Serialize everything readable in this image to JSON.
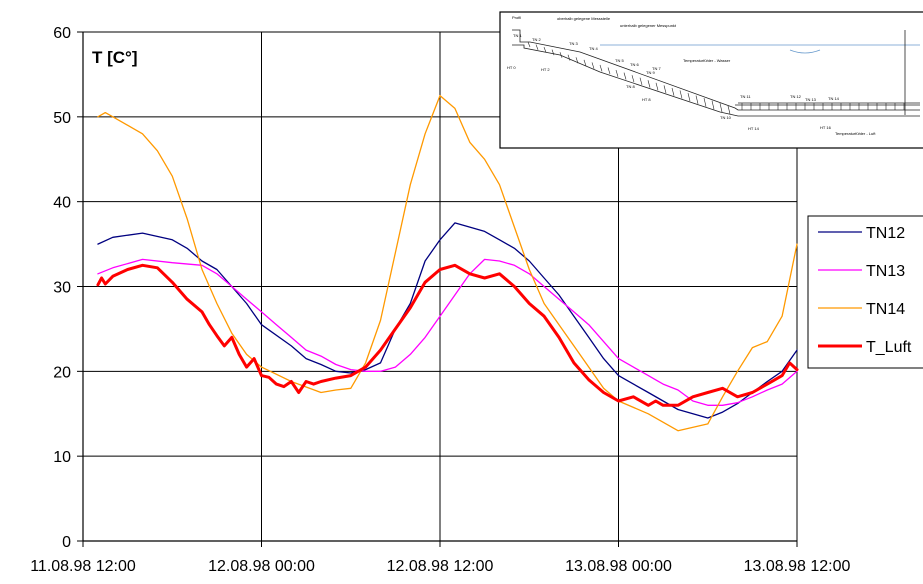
{
  "chart_data": {
    "type": "line",
    "title": "",
    "ylabel": "T [C°]",
    "xlabel": "",
    "ylim": [
      0,
      60
    ],
    "yticks": [
      0,
      10,
      20,
      30,
      40,
      50,
      60
    ],
    "xlim": [
      "11.08.98 12:00",
      "13.08.98 12:00"
    ],
    "xticks": [
      "11.08.98 12:00",
      "12.08.98 00:00",
      "12.08.98 12:00",
      "13.08.98 00:00",
      "13.08.98 12:00"
    ],
    "grid": true,
    "legend": "right",
    "series": [
      {
        "name": "TN12",
        "color": "#000080",
        "width": 1.3,
        "x": [
          "11.08.98 13:00",
          "11.08.98 14:00",
          "11.08.98 16:00",
          "11.08.98 18:00",
          "11.08.98 19:00",
          "11.08.98 20:00",
          "11.08.98 21:00",
          "11.08.98 23:00",
          "12.08.98 00:00",
          "12.08.98 02:00",
          "12.08.98 03:00",
          "12.08.98 04:00",
          "12.08.98 05:00",
          "12.08.98 06:00",
          "12.08.98 07:00",
          "12.08.98 08:00",
          "12.08.98 09:00",
          "12.08.98 10:00",
          "12.08.98 11:00",
          "12.08.98 12:00",
          "12.08.98 13:00",
          "12.08.98 14:00",
          "12.08.98 15:00",
          "12.08.98 16:00",
          "12.08.98 17:00",
          "12.08.98 18:00",
          "12.08.98 19:00",
          "12.08.98 20:00",
          "12.08.98 21:00",
          "12.08.98 22:00",
          "12.08.98 23:00",
          "13.08.98 00:00",
          "13.08.98 02:00",
          "13.08.98 04:00",
          "13.08.98 05:00",
          "13.08.98 06:00",
          "13.08.98 07:00",
          "13.08.98 08:00",
          "13.08.98 09:00",
          "13.08.98 10:00",
          "13.08.98 11:00",
          "13.08.98 12:00"
        ],
        "values": [
          35,
          35.8,
          36.3,
          35.5,
          34.5,
          33,
          32,
          28,
          25.5,
          23,
          21.5,
          20.8,
          20,
          19.8,
          20.2,
          21,
          25,
          28,
          33,
          35.5,
          37.5,
          37,
          36.5,
          35.5,
          34.5,
          33,
          31,
          29,
          26.5,
          24,
          21.5,
          19.5,
          17.5,
          15.5,
          15,
          14.5,
          15.2,
          16.2,
          17.5,
          18.8,
          20,
          22.5
        ]
      },
      {
        "name": "TN13",
        "color": "#ff00ff",
        "width": 1.3,
        "x": [
          "11.08.98 13:00",
          "11.08.98 14:00",
          "11.08.98 16:00",
          "11.08.98 18:00",
          "11.08.98 20:00",
          "11.08.98 21:00",
          "11.08.98 22:00",
          "11.08.98 23:00",
          "12.08.98 00:00",
          "12.08.98 01:00",
          "12.08.98 02:00",
          "12.08.98 03:00",
          "12.08.98 04:00",
          "12.08.98 05:00",
          "12.08.98 06:00",
          "12.08.98 07:00",
          "12.08.98 08:00",
          "12.08.98 09:00",
          "12.08.98 10:00",
          "12.08.98 11:00",
          "12.08.98 12:00",
          "12.08.98 13:00",
          "12.08.98 14:00",
          "12.08.98 15:00",
          "12.08.98 16:00",
          "12.08.98 17:00",
          "12.08.98 18:00",
          "12.08.98 19:00",
          "12.08.98 20:00",
          "12.08.98 21:00",
          "12.08.98 22:00",
          "12.08.98 23:00",
          "13.08.98 00:00",
          "13.08.98 01:00",
          "13.08.98 02:00",
          "13.08.98 03:00",
          "13.08.98 04:00",
          "13.08.98 05:00",
          "13.08.98 06:00",
          "13.08.98 07:00",
          "13.08.98 08:00",
          "13.08.98 09:00",
          "13.08.98 10:00",
          "13.08.98 11:00",
          "13.08.98 12:00"
        ],
        "values": [
          31.5,
          32.2,
          33.2,
          32.8,
          32.5,
          31.5,
          30,
          28.5,
          27,
          25.5,
          24,
          22.5,
          21.8,
          20.8,
          20.2,
          20,
          20,
          20.5,
          22,
          24,
          26.5,
          29,
          31.5,
          33.2,
          33,
          32.5,
          31.5,
          30,
          28.5,
          27,
          25.5,
          23.5,
          21.5,
          20.5,
          19.5,
          18.5,
          17.8,
          16.5,
          16,
          16,
          16.3,
          17,
          17.8,
          18.5,
          20
        ]
      },
      {
        "name": "TN14",
        "color": "#ff9900",
        "width": 1.3,
        "x": [
          "11.08.98 13:00",
          "11.08.98 13:30",
          "11.08.98 14:00",
          "11.08.98 16:00",
          "11.08.98 17:00",
          "11.08.98 18:00",
          "11.08.98 19:00",
          "11.08.98 20:00",
          "11.08.98 21:00",
          "11.08.98 22:00",
          "11.08.98 23:00",
          "12.08.98 00:00",
          "12.08.98 02:00",
          "12.08.98 04:00",
          "12.08.98 05:00",
          "12.08.98 06:00",
          "12.08.98 07:00",
          "12.08.98 08:00",
          "12.08.98 09:00",
          "12.08.98 10:00",
          "12.08.98 11:00",
          "12.08.98 12:00",
          "12.08.98 13:00",
          "12.08.98 14:00",
          "12.08.98 15:00",
          "12.08.98 16:00",
          "12.08.98 17:00",
          "12.08.98 18:00",
          "12.08.98 19:00",
          "12.08.98 20:00",
          "12.08.98 21:00",
          "12.08.98 22:00",
          "12.08.98 23:00",
          "13.08.98 00:00",
          "13.08.98 02:00",
          "13.08.98 04:00",
          "13.08.98 06:00",
          "13.08.98 07:00",
          "13.08.98 08:00",
          "13.08.98 09:00",
          "13.08.98 10:00",
          "13.08.98 11:00",
          "13.08.98 12:00"
        ],
        "values": [
          50,
          50.5,
          50,
          48,
          46,
          43,
          38,
          32,
          28,
          24.5,
          22,
          20.5,
          18.8,
          17.5,
          17.8,
          18,
          21,
          26,
          34,
          42,
          48,
          52.5,
          51,
          47,
          45,
          42,
          37,
          32,
          28,
          25.5,
          23,
          20.5,
          18,
          16.5,
          15,
          13,
          13.8,
          17,
          20,
          22.8,
          23.5,
          26.5,
          35
        ]
      },
      {
        "name": "T_Luft",
        "color": "#ff0000",
        "width": 3,
        "x": [
          "11.08.98 13:00",
          "11.08.98 13:15",
          "11.08.98 13:30",
          "11.08.98 14:00",
          "11.08.98 15:00",
          "11.08.98 16:00",
          "11.08.98 17:00",
          "11.08.98 18:00",
          "11.08.98 19:00",
          "11.08.98 20:00",
          "11.08.98 20:30",
          "11.08.98 21:00",
          "11.08.98 21:30",
          "11.08.98 22:00",
          "11.08.98 22:30",
          "11.08.98 23:00",
          "11.08.98 23:30",
          "11.08.98 23:45",
          "12.08.98 00:00",
          "12.08.98 00:30",
          "12.08.98 01:00",
          "12.08.98 01:30",
          "12.08.98 02:00",
          "12.08.98 02:30",
          "12.08.98 03:00",
          "12.08.98 03:30",
          "12.08.98 04:00",
          "12.08.98 05:00",
          "12.08.98 06:00",
          "12.08.98 07:00",
          "12.08.98 08:00",
          "12.08.98 09:00",
          "12.08.98 10:00",
          "12.08.98 11:00",
          "12.08.98 12:00",
          "12.08.98 13:00",
          "12.08.98 14:00",
          "12.08.98 15:00",
          "12.08.98 16:00",
          "12.08.98 17:00",
          "12.08.98 18:00",
          "12.08.98 19:00",
          "12.08.98 20:00",
          "12.08.98 21:00",
          "12.08.98 22:00",
          "12.08.98 23:00",
          "13.08.98 00:00",
          "13.08.98 01:00",
          "13.08.98 02:00",
          "13.08.98 02:30",
          "13.08.98 03:00",
          "13.08.98 04:00",
          "13.08.98 05:00",
          "13.08.98 06:00",
          "13.08.98 07:00",
          "13.08.98 08:00",
          "13.08.98 09:00",
          "13.08.98 10:00",
          "13.08.98 11:00",
          "13.08.98 11:30",
          "13.08.98 12:00"
        ],
        "values": [
          30.2,
          31,
          30.3,
          31.2,
          32,
          32.5,
          32.2,
          30.5,
          28.5,
          27,
          25.5,
          24.2,
          23,
          24,
          22,
          20.5,
          21.5,
          20.5,
          19.5,
          19.3,
          18.5,
          18.2,
          18.8,
          17.5,
          18.8,
          18.5,
          18.8,
          19.2,
          19.5,
          20.5,
          22.5,
          25,
          27.5,
          30.5,
          32,
          32.5,
          31.5,
          31,
          31.5,
          30,
          28,
          26.5,
          24,
          21,
          19,
          17.5,
          16.5,
          17,
          16,
          16.5,
          16,
          16,
          17,
          17.5,
          18,
          17,
          17.5,
          18.5,
          19.5,
          21,
          20.2
        ]
      }
    ]
  },
  "inset": {
    "heading": "Profil",
    "texts": [
      "oberhalb gelegene Messstelle",
      "unterhalb gelegener Messpunkt",
      "Temperaturfühler - Wasser",
      "Temperaturfühler - Luft"
    ],
    "red_labels": [
      "TN 1",
      "TN 2",
      "TN 3",
      "TN 4",
      "TN 5",
      "TN 6",
      "TN 7",
      "TN 8",
      "TN 9",
      "TN 10",
      "TN 11",
      "TN 12",
      "TN 13",
      "TN 14"
    ],
    "black_labels": [
      "HT 0",
      "HT 2",
      "HT 8",
      "HT 14",
      "HT 16"
    ]
  }
}
